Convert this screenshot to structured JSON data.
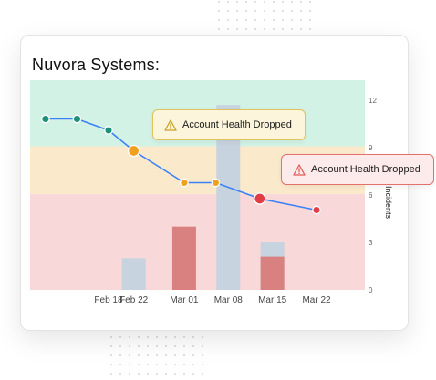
{
  "card": {
    "title": "Nuvora Systems:"
  },
  "callouts": [
    {
      "label": "Account Health Dropped",
      "icon": "warning-icon",
      "color": "#c9a227"
    },
    {
      "label": "Account Health Dropped",
      "icon": "warning-icon",
      "color": "#e25c57"
    }
  ],
  "chart_data": {
    "type": "line",
    "x_tick_labels": [
      "Feb 18",
      "Feb 22",
      "Mar 01",
      "Mar 08",
      "Mar 15",
      "Mar 22"
    ],
    "y_right": {
      "label": "Incidents",
      "ticks": [
        0,
        3,
        6,
        9,
        12
      ],
      "range": [
        0,
        12
      ]
    },
    "health_zones": [
      {
        "band": "low",
        "range": [
          0,
          42
        ],
        "color": "#f8d8d8"
      },
      {
        "band": "medium",
        "range": [
          42,
          63
        ],
        "color": "#fbe9cc"
      },
      {
        "band": "high",
        "range": [
          63,
          92
        ],
        "color": "#d2f2e6"
      }
    ],
    "health_line": {
      "color": "#3b82f6",
      "points": [
        {
          "x": "Feb 08",
          "y": 75,
          "status": "high"
        },
        {
          "x": "Feb 13",
          "y": 75,
          "status": "high"
        },
        {
          "x": "Feb 18",
          "y": 70,
          "status": "high"
        },
        {
          "x": "Feb 22",
          "y": 61,
          "status": "medium",
          "highlight": true
        },
        {
          "x": "Mar 01",
          "y": 47,
          "status": "medium"
        },
        {
          "x": "Mar 06",
          "y": 47,
          "status": "medium"
        },
        {
          "x": "Mar 13",
          "y": 40,
          "status": "low",
          "highlight": true
        },
        {
          "x": "Mar 22",
          "y": 35,
          "status": "low"
        }
      ]
    },
    "incident_bars": [
      {
        "x": "Feb 22",
        "value": 2,
        "color": "#c7d3df"
      },
      {
        "x": "Mar 01",
        "value": 4,
        "color": "#d98080"
      },
      {
        "x": "Mar 08",
        "value": 11.7,
        "color": "#c7d3df"
      },
      {
        "x": "Mar 15",
        "value": 3,
        "color": "#c7d3df"
      },
      {
        "x": "Mar 15",
        "value": 2.1,
        "color": "#d98080"
      }
    ],
    "status_colors": {
      "high": "#1e8f78",
      "medium": "#f0a020",
      "low": "#e23c45"
    }
  }
}
